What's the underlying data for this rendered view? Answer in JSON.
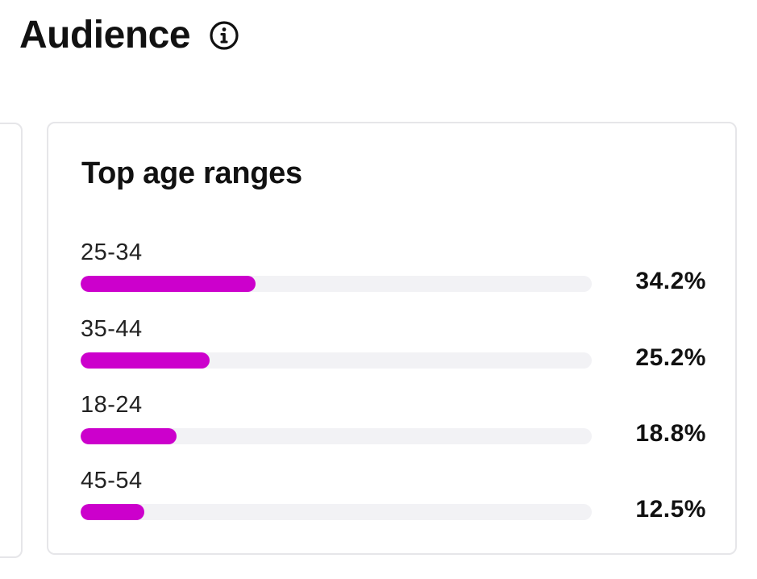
{
  "header": {
    "title": "Audience",
    "info_icon": "info-circle-icon"
  },
  "age_card": {
    "title": "Top age ranges",
    "bar_color": "#cc00cc",
    "track_color": "#f2f2f5",
    "ranges": [
      {
        "label": "25-34",
        "percent_text": "34.2%",
        "value": 34.2
      },
      {
        "label": "35-44",
        "percent_text": "25.2%",
        "value": 25.2
      },
      {
        "label": "18-24",
        "percent_text": "18.8%",
        "value": 18.8
      },
      {
        "label": "45-54",
        "percent_text": "12.5%",
        "value": 12.5
      }
    ]
  }
}
